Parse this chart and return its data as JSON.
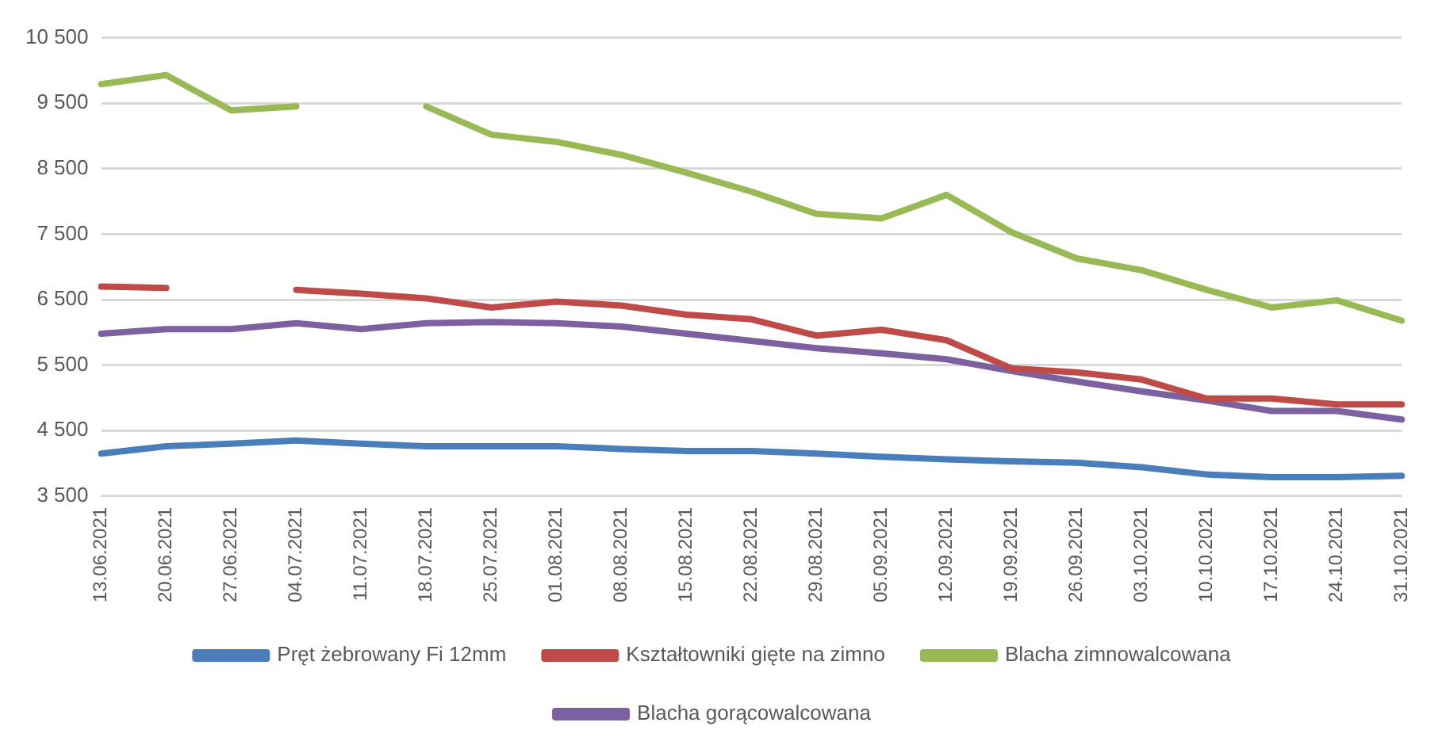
{
  "chart_data": {
    "type": "line",
    "categories": [
      "13.06.2021",
      "20.06.2021",
      "27.06.2021",
      "04.07.2021",
      "11.07.2021",
      "18.07.2021",
      "25.07.2021",
      "01.08.2021",
      "08.08.2021",
      "15.08.2021",
      "22.08.2021",
      "29.08.2021",
      "05.09.2021",
      "12.09.2021",
      "19.09.2021",
      "26.09.2021",
      "03.10.2021",
      "10.10.2021",
      "17.10.2021",
      "24.10.2021",
      "31.10.2021"
    ],
    "series": [
      {
        "name": "Pręt żebrowany Fi 12mm",
        "color": "#4a7ebb",
        "values": [
          4150,
          4260,
          4300,
          4350,
          4300,
          4260,
          4260,
          4260,
          4220,
          4190,
          4190,
          4150,
          4100,
          4060,
          4030,
          4010,
          3940,
          3830,
          3790,
          3790,
          3810
        ]
      },
      {
        "name": "Kształtowniki gięte na zimno",
        "color": "#be4b48",
        "values": [
          6700,
          6680,
          null,
          6650,
          6590,
          6520,
          6380,
          6470,
          6410,
          6270,
          6200,
          5950,
          6040,
          5880,
          5450,
          5390,
          5280,
          4990,
          4990,
          4900,
          4900
        ]
      },
      {
        "name": "Blacha zimnowalcowana",
        "color": "#98b954",
        "values": [
          9790,
          9930,
          9390,
          9450,
          null,
          9450,
          9020,
          8910,
          8710,
          8440,
          8150,
          7810,
          7740,
          8100,
          7530,
          7130,
          6950,
          6650,
          6380,
          6490,
          6180
        ]
      },
      {
        "name": "Blacha gorącowalcowana",
        "color": "#7d60a0",
        "values": [
          5980,
          6050,
          6050,
          6140,
          6050,
          6140,
          6160,
          6140,
          6090,
          5980,
          5870,
          5760,
          5680,
          5590,
          5410,
          5250,
          5100,
          4960,
          4800,
          4800,
          4670
        ]
      }
    ],
    "ylim": [
      3500,
      10500
    ],
    "yticks": [
      {
        "value": 3500,
        "label": "3 500"
      },
      {
        "value": 4500,
        "label": "4 500"
      },
      {
        "value": 5500,
        "label": "5 500"
      },
      {
        "value": 6500,
        "label": "6 500"
      },
      {
        "value": 7500,
        "label": "7 500"
      },
      {
        "value": 8500,
        "label": "8 500"
      },
      {
        "value": 9500,
        "label": "9 500"
      },
      {
        "value": 10500,
        "label": "10 500"
      }
    ],
    "grid": "y",
    "legend": "bottom",
    "marker": "none",
    "line_style": "solid"
  }
}
